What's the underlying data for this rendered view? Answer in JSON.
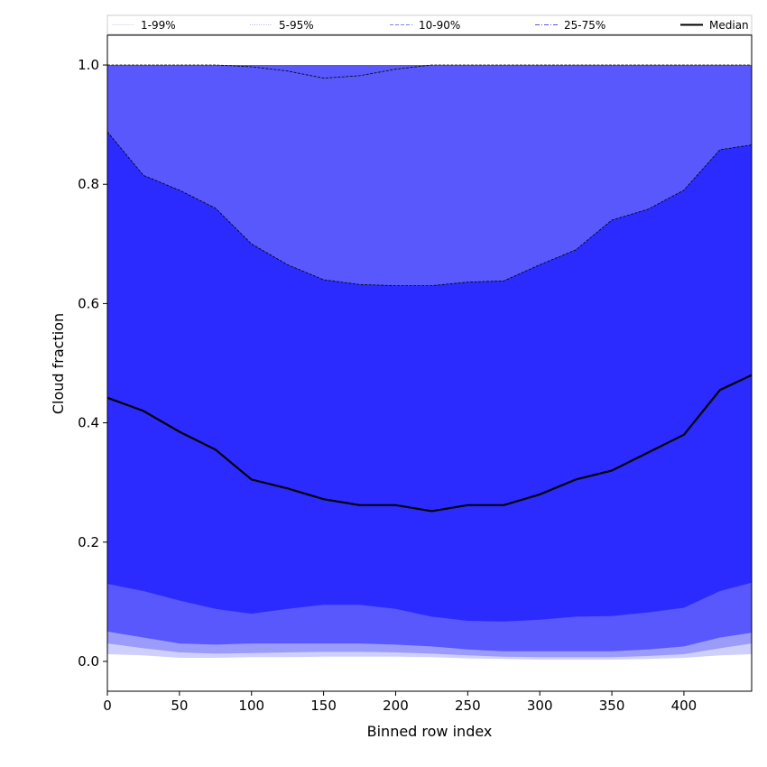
{
  "chart_data": {
    "type": "area",
    "xlabel": "Binned row index",
    "ylabel": "Cloud fraction",
    "xlim": [
      0,
      447
    ],
    "ylim": [
      -0.05,
      1.05
    ],
    "xticks": [
      0,
      50,
      100,
      150,
      200,
      250,
      300,
      350,
      400
    ],
    "yticks": [
      0.0,
      0.2,
      0.4,
      0.6,
      0.8,
      1.0
    ],
    "grid": false,
    "legend": {
      "placement": "top",
      "entries": [
        {
          "label": "1-99%",
          "color": "#e6e6fb",
          "style": "solid"
        },
        {
          "label": "5-95%",
          "color": "#b0b0f7",
          "style": "dotted"
        },
        {
          "label": "10-90%",
          "color": "#8080f5",
          "style": "dashed"
        },
        {
          "label": "25-75%",
          "color": "#5555f2",
          "style": "dashdot"
        },
        {
          "label": "Median",
          "color": "#000000",
          "style": "solid"
        }
      ]
    },
    "x": [
      0,
      25,
      50,
      75,
      100,
      125,
      150,
      175,
      200,
      225,
      250,
      275,
      300,
      325,
      350,
      375,
      400,
      425,
      447
    ],
    "bands": [
      {
        "name": "1-99%",
        "color": "#cfcffc",
        "lower": [
          0.012,
          0.01,
          0.006,
          0.006,
          0.007,
          0.007,
          0.008,
          0.008,
          0.008,
          0.007,
          0.005,
          0.004,
          0.003,
          0.003,
          0.003,
          0.004,
          0.006,
          0.01,
          0.012
        ],
        "upper": [
          1.0,
          1.0,
          1.0,
          1.0,
          1.0,
          1.0,
          1.0,
          1.0,
          1.0,
          1.0,
          1.0,
          1.0,
          1.0,
          1.0,
          1.0,
          1.0,
          1.0,
          1.0,
          1.0
        ]
      },
      {
        "name": "5-95%",
        "color": "#9b9bfa",
        "lower": [
          0.03,
          0.022,
          0.015,
          0.013,
          0.014,
          0.015,
          0.016,
          0.016,
          0.015,
          0.013,
          0.01,
          0.008,
          0.007,
          0.007,
          0.007,
          0.009,
          0.012,
          0.022,
          0.03
        ],
        "upper": [
          1.0,
          1.0,
          1.0,
          1.0,
          0.997,
          0.99,
          0.978,
          0.982,
          0.993,
          1.0,
          1.0,
          1.0,
          1.0,
          1.0,
          1.0,
          1.0,
          1.0,
          1.0,
          1.0
        ]
      },
      {
        "name": "10-90%",
        "color": "#5858fc",
        "lower": [
          0.05,
          0.04,
          0.03,
          0.028,
          0.03,
          0.03,
          0.03,
          0.03,
          0.028,
          0.025,
          0.02,
          0.017,
          0.017,
          0.017,
          0.017,
          0.02,
          0.025,
          0.04,
          0.048
        ],
        "upper": [
          1.0,
          1.0,
          1.0,
          1.0,
          1.0,
          1.0,
          1.0,
          1.0,
          1.0,
          1.0,
          1.0,
          1.0,
          1.0,
          1.0,
          1.0,
          1.0,
          1.0,
          1.0,
          1.0
        ]
      },
      {
        "name": "25-75%",
        "color": "#2b2bff",
        "lower": [
          0.13,
          0.118,
          0.102,
          0.088,
          0.08,
          0.088,
          0.095,
          0.095,
          0.088,
          0.075,
          0.068,
          0.067,
          0.07,
          0.075,
          0.076,
          0.082,
          0.09,
          0.118,
          0.132
        ],
        "upper": [
          0.888,
          0.815,
          0.79,
          0.76,
          0.7,
          0.665,
          0.64,
          0.632,
          0.63,
          0.63,
          0.636,
          0.638,
          0.665,
          0.69,
          0.74,
          0.758,
          0.79,
          0.858,
          0.866
        ]
      }
    ],
    "median": [
      0.442,
      0.42,
      0.385,
      0.355,
      0.305,
      0.29,
      0.272,
      0.262,
      0.262,
      0.252,
      0.262,
      0.262,
      0.28,
      0.305,
      0.32,
      0.35,
      0.38,
      0.455,
      0.48
    ]
  }
}
